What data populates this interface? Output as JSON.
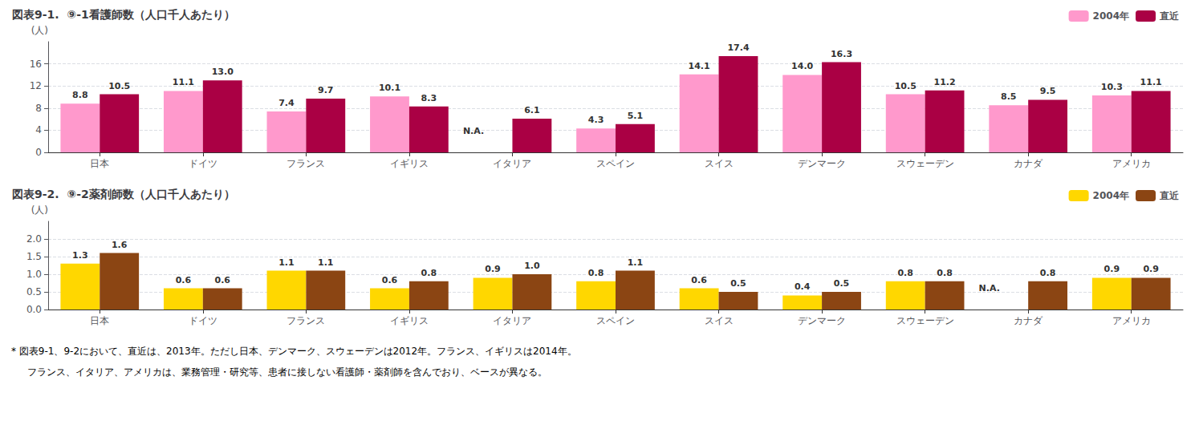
{
  "chart_data": [
    {
      "type": "bar",
      "title": "図表9-1.  ⑨-1看護師数（人口千人あたり）",
      "ylabel": "(人)",
      "categories": [
        "日本",
        "ドイツ",
        "フランス",
        "イギリス",
        "イタリア",
        "スペイン",
        "スイス",
        "デンマーク",
        "スウェーデン",
        "カナダ",
        "アメリカ"
      ],
      "series": [
        {
          "name": "2004年",
          "color": "#FF99CC",
          "values": [
            8.8,
            11.1,
            7.4,
            10.1,
            null,
            4.3,
            14.1,
            14.0,
            10.5,
            8.5,
            10.3
          ],
          "value_labels": [
            "8.8",
            "11.1",
            "7.4",
            "10.1",
            "N.A.",
            "4.3",
            "14.1",
            "14.0",
            "10.5",
            "8.5",
            "10.3"
          ]
        },
        {
          "name": "直近",
          "color": "#AA0044",
          "values": [
            10.5,
            13.0,
            9.7,
            8.3,
            6.1,
            5.1,
            17.4,
            16.3,
            11.2,
            9.5,
            11.1
          ],
          "value_labels": [
            "10.5",
            "13.0",
            "9.7",
            "8.3",
            "6.1",
            "5.1",
            "17.4",
            "16.3",
            "11.2",
            "9.5",
            "11.1"
          ]
        }
      ],
      "ylim": [
        0,
        20
      ],
      "yticks": [
        0,
        4,
        8,
        12,
        16
      ],
      "grid": true,
      "legend": "upper right",
      "data_labels": true
    },
    {
      "type": "bar",
      "title": "図表9-2.  ⑨-2薬剤師数（人口千人あたり）",
      "ylabel": "(人)",
      "categories": [
        "日本",
        "ドイツ",
        "フランス",
        "イギリス",
        "イタリア",
        "スペイン",
        "スイス",
        "デンマーク",
        "スウェーデン",
        "カナダ",
        "アメリカ"
      ],
      "series": [
        {
          "name": "2004年",
          "color": "#FFD700",
          "values": [
            1.3,
            0.6,
            1.1,
            0.6,
            0.9,
            0.8,
            0.6,
            0.4,
            0.8,
            null,
            0.9
          ],
          "value_labels": [
            "1.3",
            "0.6",
            "1.1",
            "0.6",
            "0.9",
            "0.8",
            "0.6",
            "0.4",
            "0.8",
            "N.A.",
            "0.9"
          ]
        },
        {
          "name": "直近",
          "color": "#8B4513",
          "values": [
            1.6,
            0.6,
            1.1,
            0.8,
            1.0,
            1.1,
            0.5,
            0.5,
            0.8,
            0.8,
            0.9
          ],
          "value_labels": [
            "1.6",
            "0.6",
            "1.1",
            "0.8",
            "1.0",
            "1.1",
            "0.5",
            "0.5",
            "0.8",
            "0.8",
            "0.9"
          ]
        }
      ],
      "ylim": [
        0,
        2.5
      ],
      "yticks": [
        {
          "value": 0,
          "label": "0.0"
        },
        0.5,
        {
          "value": 1,
          "label": "1.0"
        },
        1.5,
        {
          "value": 2,
          "label": "2.0"
        }
      ],
      "grid": true,
      "legend": "upper right",
      "data_labels": true,
      "annotations": [
        "* 図表9-1、9-2において、直近は、2013年。ただし日本、デンマーク、スウェーデンは2012年。フランス、イギリスは2014年。",
        "フランス、イタリア、アメリカは、業務管理・研究等、患者に接しない看護師・薬剤師を含んでおり、ベースが異なる。"
      ]
    }
  ]
}
